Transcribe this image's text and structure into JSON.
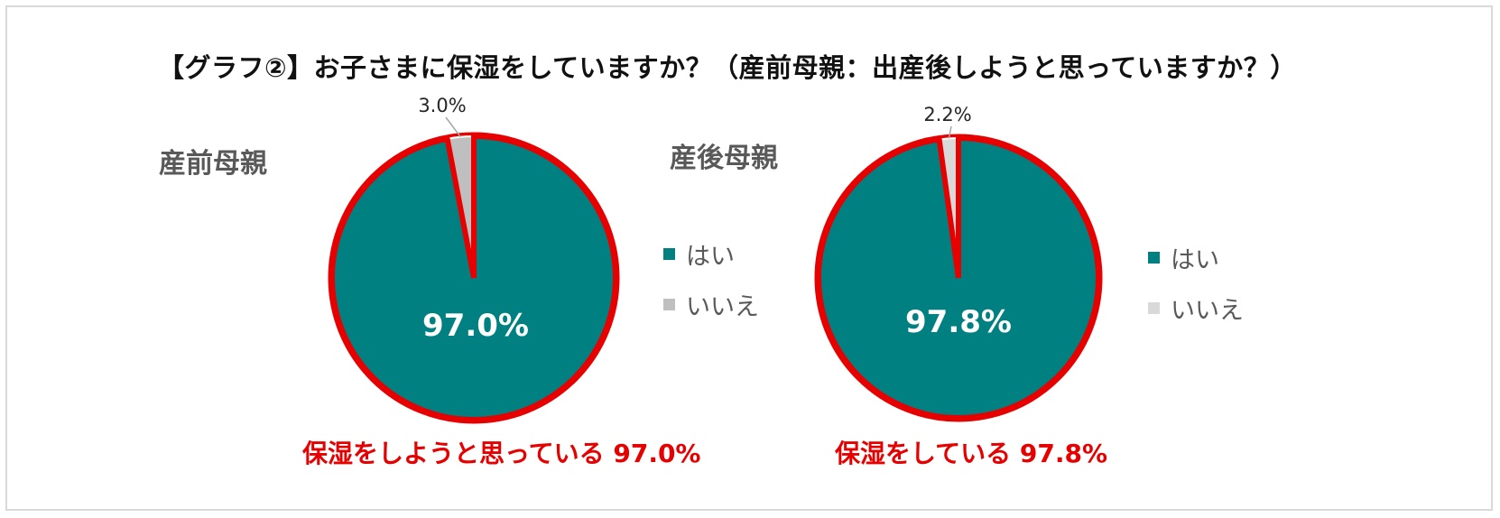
{
  "title": "【グラフ②】お子さまに保湿をしていますか？（産前母親：出産後しようと思っていますか？）",
  "colors": {
    "yes": "#008080",
    "no_left": "#bfbfbf",
    "no_right": "#d9d9d9",
    "outline": "#e60000",
    "separator": "#ffffff"
  },
  "chart_data": [
    {
      "type": "pie",
      "panel_label": "産前母親",
      "categories": [
        "はい",
        "いいえ"
      ],
      "values": [
        97.0,
        3.0
      ],
      "data_labels": [
        "97.0%",
        "3.0%"
      ],
      "legend": [
        "はい",
        "いいえ"
      ],
      "legend_position": "right",
      "highlight": "保湿をしようと思っている 97.0%"
    },
    {
      "type": "pie",
      "panel_label": "産後母親",
      "categories": [
        "はい",
        "いいえ"
      ],
      "values": [
        97.8,
        2.2
      ],
      "data_labels": [
        "97.8%",
        "2.2%"
      ],
      "legend": [
        "はい",
        "いいえ"
      ],
      "legend_position": "right",
      "highlight": "保湿をしている 97.8%"
    }
  ]
}
